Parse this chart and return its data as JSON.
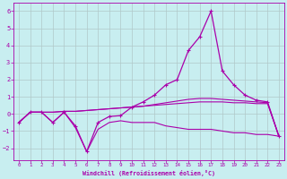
{
  "background_color": "#c8eef0",
  "grid_color": "#b0c8c8",
  "line_color": "#aa00aa",
  "xlabel": "Windchill (Refroidissement éolien,°C)",
  "xlim": [
    -0.5,
    23.5
  ],
  "ylim": [
    -2.7,
    6.5
  ],
  "yticks": [
    -2,
    -1,
    0,
    1,
    2,
    3,
    4,
    5,
    6
  ],
  "xticks": [
    0,
    1,
    2,
    3,
    4,
    5,
    6,
    7,
    8,
    9,
    10,
    11,
    12,
    13,
    14,
    15,
    16,
    17,
    18,
    19,
    20,
    21,
    22,
    23
  ],
  "line_jagged_x": [
    0,
    1,
    2,
    3,
    4,
    5,
    6,
    7,
    8,
    9,
    10,
    11,
    12,
    13,
    14,
    15,
    16,
    17,
    18,
    19,
    20,
    21,
    22,
    23
  ],
  "line_jagged_y": [
    -0.5,
    0.1,
    0.1,
    -0.5,
    0.1,
    -0.7,
    -2.2,
    -0.5,
    -0.15,
    -0.1,
    0.4,
    0.7,
    1.1,
    1.7,
    2.0,
    3.7,
    4.5,
    6.0,
    2.5,
    1.7,
    1.1,
    0.8,
    0.7,
    -1.3
  ],
  "line_flat_x": [
    0,
    1,
    2,
    3,
    4,
    5,
    6,
    7,
    8,
    9,
    10,
    11,
    12,
    13,
    14,
    15,
    16,
    17,
    18,
    19,
    20,
    21,
    22,
    23
  ],
  "line_flat_y": [
    -0.5,
    0.1,
    0.1,
    0.1,
    0.15,
    0.15,
    0.2,
    0.25,
    0.3,
    0.35,
    0.4,
    0.45,
    0.5,
    0.55,
    0.6,
    0.65,
    0.7,
    0.7,
    0.7,
    0.65,
    0.65,
    0.6,
    0.6,
    -1.3
  ],
  "line_bottom_x": [
    0,
    1,
    2,
    3,
    4,
    5,
    6,
    7,
    8,
    9,
    10,
    11,
    12,
    13,
    14,
    15,
    16,
    17,
    18,
    19,
    20,
    21,
    22,
    23
  ],
  "line_bottom_y": [
    -0.5,
    0.1,
    0.1,
    -0.5,
    0.1,
    -0.8,
    -2.2,
    -0.9,
    -0.5,
    -0.4,
    -0.5,
    -0.5,
    -0.5,
    -0.7,
    -0.8,
    -0.9,
    -0.9,
    -0.9,
    -1.0,
    -1.1,
    -1.1,
    -1.2,
    -1.2,
    -1.3
  ],
  "line_upper_x": [
    0,
    1,
    2,
    3,
    4,
    5,
    6,
    7,
    8,
    9,
    10,
    11,
    12,
    13,
    14,
    15,
    16,
    17,
    18,
    19,
    20,
    21,
    22,
    23
  ],
  "line_upper_y": [
    -0.5,
    0.1,
    0.1,
    0.1,
    0.15,
    0.15,
    0.2,
    0.25,
    0.3,
    0.35,
    0.4,
    0.45,
    0.55,
    0.65,
    0.75,
    0.85,
    0.9,
    0.9,
    0.85,
    0.8,
    0.75,
    0.7,
    0.65,
    -1.3
  ]
}
